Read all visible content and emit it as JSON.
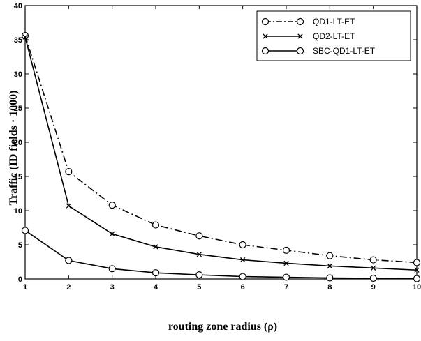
{
  "chart_data": {
    "type": "line",
    "xlabel": "routing zone radius  (ρ)",
    "ylabel": "Traffic (ID fields · 1000)",
    "xlim": [
      1,
      10
    ],
    "ylim": [
      0,
      40
    ],
    "xticks": [
      1,
      2,
      3,
      4,
      5,
      6,
      7,
      8,
      9,
      10
    ],
    "yticks": [
      0,
      5,
      10,
      15,
      20,
      25,
      30,
      35,
      40
    ],
    "grid": false,
    "legend_position": "top-right",
    "x": [
      1,
      2,
      3,
      4,
      5,
      6,
      7,
      8,
      9,
      10
    ],
    "series": [
      {
        "name": "QD1-LT-ET",
        "values": [
          35.6,
          15.7,
          10.8,
          7.9,
          6.3,
          5.0,
          4.2,
          3.4,
          2.8,
          2.4
        ],
        "line_style": "dash-dot",
        "marker": "circle"
      },
      {
        "name": "QD2-LT-ET",
        "values": [
          35.4,
          10.7,
          6.6,
          4.7,
          3.6,
          2.8,
          2.3,
          1.9,
          1.6,
          1.3
        ],
        "line_style": "solid",
        "marker": "x"
      },
      {
        "name": "SBC-QD1-LT-ET",
        "values": [
          7.1,
          2.7,
          1.5,
          0.9,
          0.6,
          0.35,
          0.25,
          0.15,
          0.1,
          0.05
        ],
        "line_style": "solid",
        "marker": "circle"
      }
    ]
  }
}
